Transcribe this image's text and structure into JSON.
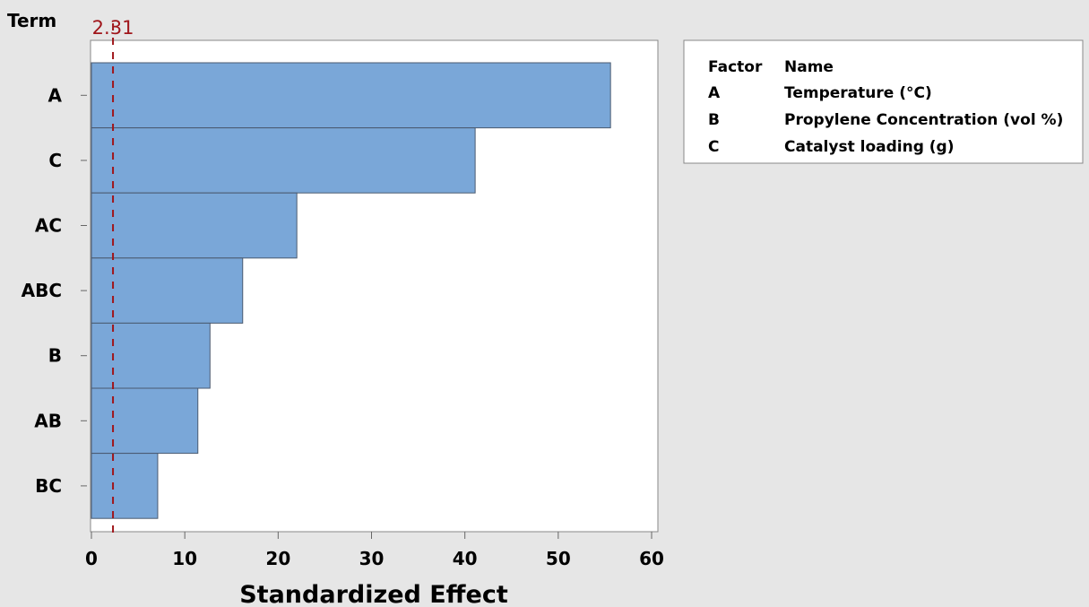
{
  "chart_data": {
    "type": "bar",
    "orientation": "horizontal",
    "ylabel": "Term",
    "xlabel": "Standardized Effect",
    "categories": [
      "A",
      "C",
      "AC",
      "ABC",
      "B",
      "AB",
      "BC"
    ],
    "values": [
      55.6,
      41.1,
      22.0,
      16.2,
      12.7,
      11.4,
      7.1
    ],
    "xlim": [
      0,
      60
    ],
    "xticks": [
      0,
      10,
      20,
      30,
      40,
      50,
      60
    ],
    "reference_line": {
      "value": 2.31,
      "label": "2.31",
      "color": "#a0161b"
    },
    "bar_color": "#7aa7d8",
    "bar_edge_color": "#4a5a70",
    "grid": false
  },
  "legend": {
    "header": {
      "factor": "Factor",
      "name": "Name"
    },
    "rows": [
      {
        "factor": "A",
        "name": "Temperature (°C)"
      },
      {
        "factor": "B",
        "name": "Propylene Concentration (vol %)"
      },
      {
        "factor": "C",
        "name": "Catalyst loading (g)"
      }
    ]
  }
}
